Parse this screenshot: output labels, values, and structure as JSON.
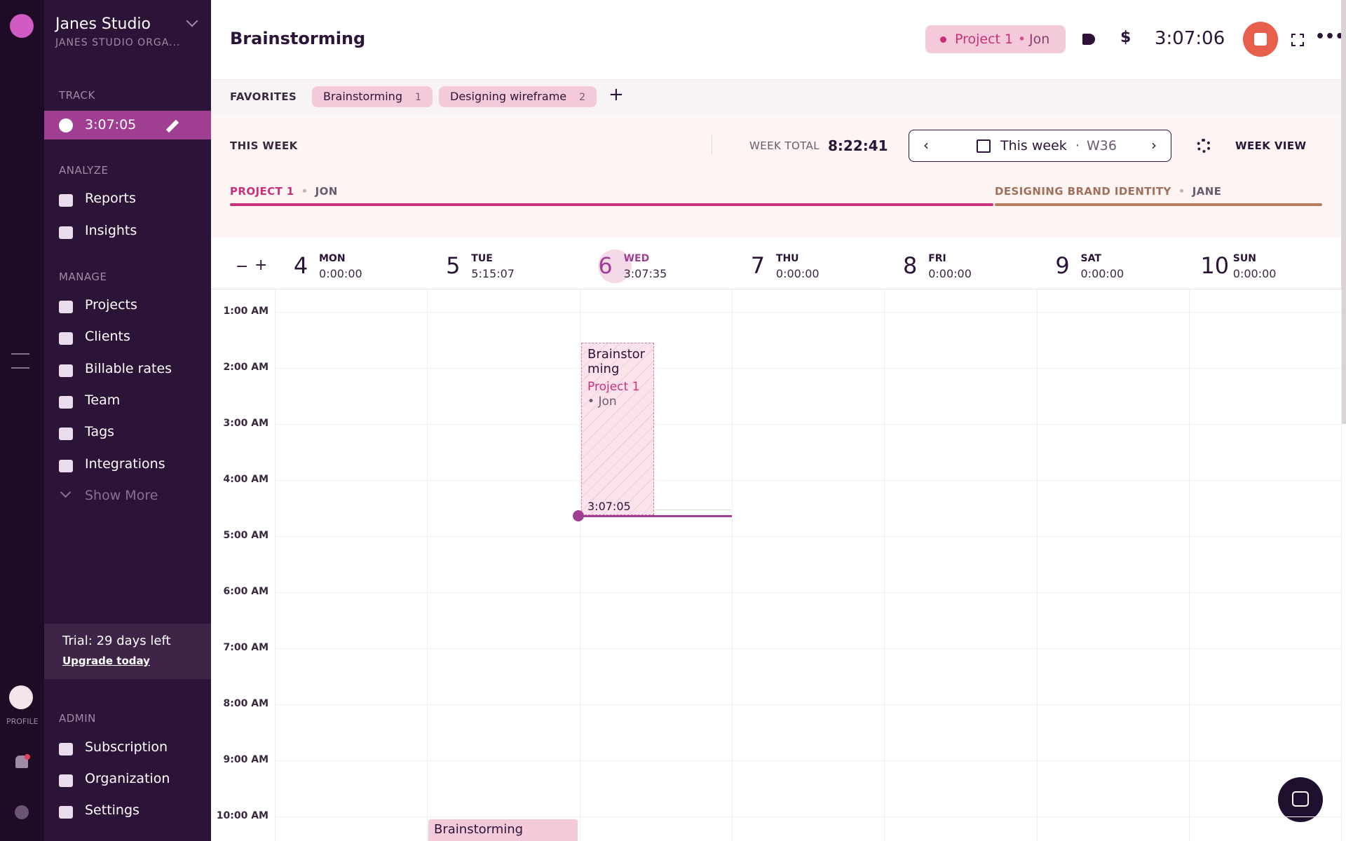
{
  "sidebar": {
    "workspace": "Janes Studio",
    "organization": "JANES STUDIO ORGA...",
    "track_label": "TRACK",
    "timer": "3:07:05",
    "analyze_label": "ANALYZE",
    "analyze": [
      "Reports",
      "Insights"
    ],
    "manage_label": "MANAGE",
    "manage": [
      "Projects",
      "Clients",
      "Billable rates",
      "Team",
      "Tags",
      "Integrations"
    ],
    "show_more": "Show More",
    "trial": "Trial: 29 days left",
    "upgrade": "Upgrade today",
    "admin_label": "ADMIN",
    "admin": [
      "Subscription",
      "Organization",
      "Settings"
    ],
    "profile": "PROFILE"
  },
  "header": {
    "title": "Brainstorming",
    "project": "Project 1",
    "client": "Jon",
    "timer": "3:07:06"
  },
  "favorites": {
    "label": "FAVORITES",
    "items": [
      {
        "name": "Brainstorming",
        "count": "1"
      },
      {
        "name": "Designing wireframe",
        "count": "2"
      }
    ]
  },
  "week": {
    "label": "THIS WEEK",
    "total_label": "WEEK TOTAL",
    "total": "8:22:41",
    "range": "This week",
    "week_number": "W36",
    "view": "WEEK VIEW",
    "projects": [
      {
        "name": "PROJECT 1",
        "client": "JON"
      },
      {
        "name": "DESIGNING BRAND IDENTITY",
        "client": "JANE"
      }
    ]
  },
  "days": [
    {
      "date": "4",
      "day": "MON",
      "total": "0:00:00"
    },
    {
      "date": "5",
      "day": "TUE",
      "total": "5:15:07"
    },
    {
      "date": "6",
      "day": "WED",
      "total": "3:07:35"
    },
    {
      "date": "7",
      "day": "THU",
      "total": "0:00:00"
    },
    {
      "date": "8",
      "day": "FRI",
      "total": "0:00:00"
    },
    {
      "date": "9",
      "day": "SAT",
      "total": "0:00:00"
    },
    {
      "date": "10",
      "day": "SUN",
      "total": "0:00:00"
    }
  ],
  "hours": [
    "1:00 AM",
    "2:00 AM",
    "3:00 AM",
    "4:00 AM",
    "5:00 AM",
    "6:00 AM",
    "7:00 AM",
    "8:00 AM",
    "9:00 AM",
    "10:00 AM"
  ],
  "entries": [
    {
      "title": "Brainstorming",
      "project": "Project 1",
      "client": "Jon",
      "duration": "3:07:05"
    },
    {
      "title": "Brainstorming"
    }
  ]
}
